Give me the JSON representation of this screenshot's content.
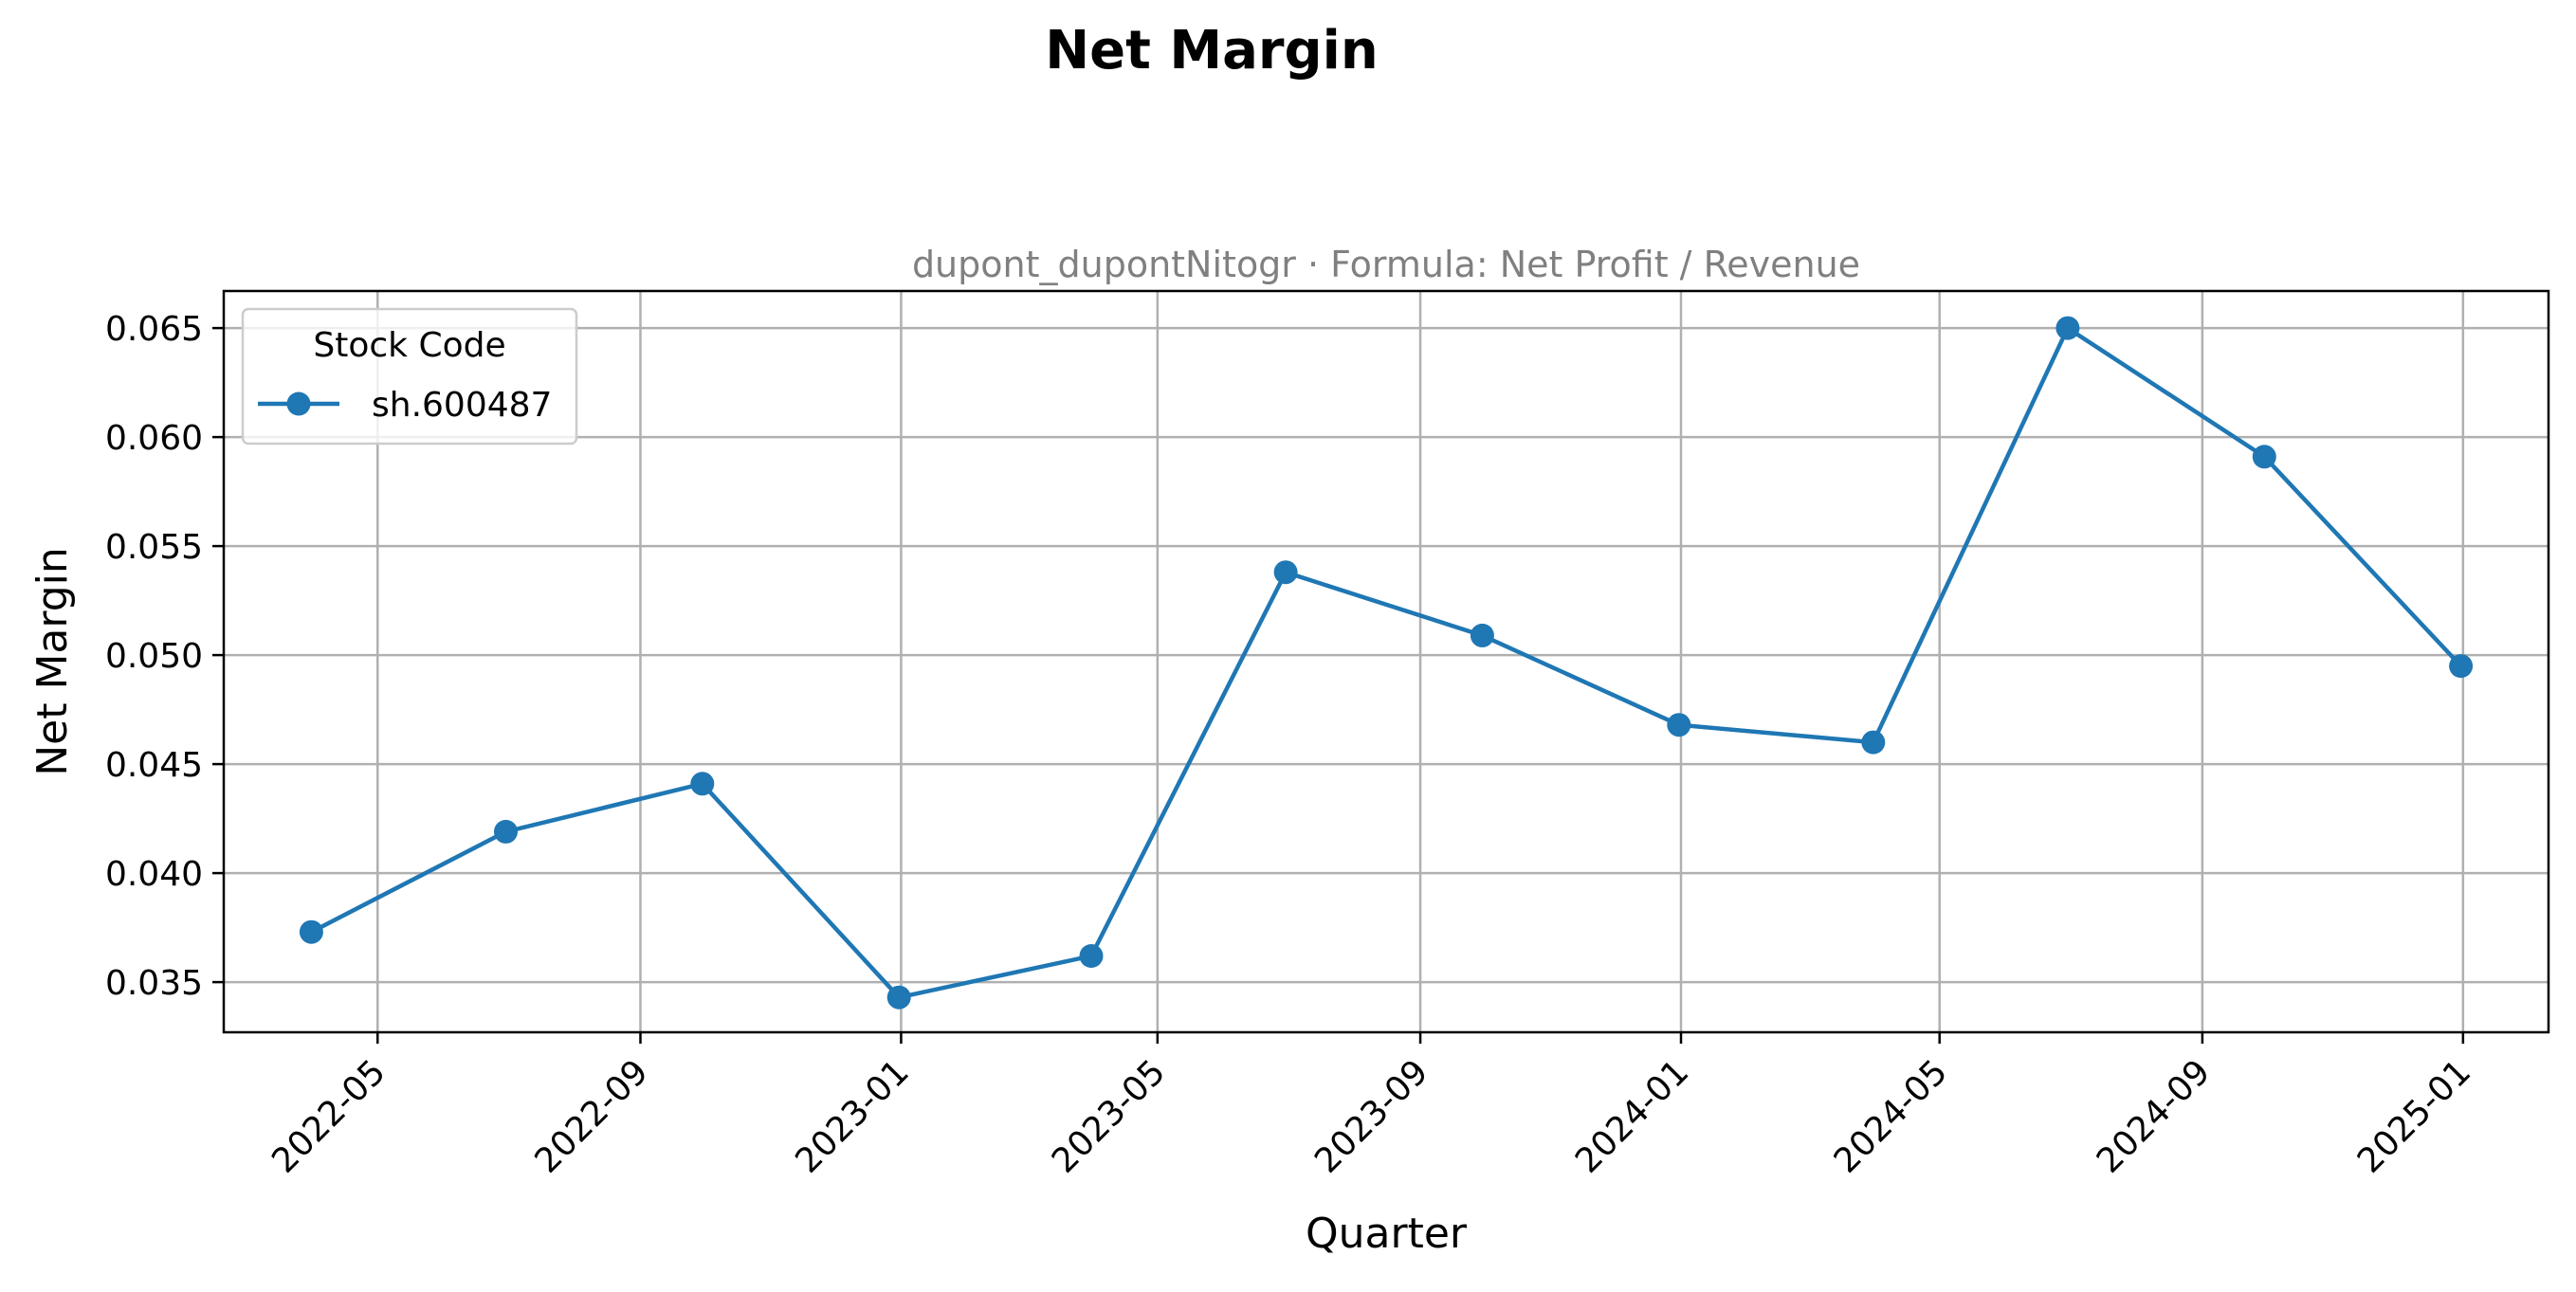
{
  "chart_data": {
    "type": "line",
    "title": "Net Margin",
    "subtitle": "dupont_dupontNitogr · Formula: Net Profit / Revenue",
    "xlabel": "Quarter",
    "ylabel": "Net Margin",
    "x": [
      "2022-03-31",
      "2022-06-30",
      "2022-09-30",
      "2022-12-31",
      "2023-03-31",
      "2023-06-30",
      "2023-09-30",
      "2023-12-31",
      "2024-03-31",
      "2024-06-30",
      "2024-09-30",
      "2024-12-31"
    ],
    "xticks": [
      "2022-05",
      "2022-09",
      "2023-01",
      "2023-05",
      "2023-09",
      "2024-01",
      "2024-05",
      "2024-09",
      "2025-01"
    ],
    "yticks": [
      "0.035",
      "0.040",
      "0.045",
      "0.050",
      "0.055",
      "0.060",
      "0.065"
    ],
    "xlim": [
      "2022-02-18",
      "2025-02-10"
    ],
    "ylim": [
      0.0327,
      0.0667
    ],
    "grid": true,
    "legend": {
      "title": "Stock Code",
      "placement": "top-left"
    },
    "series": [
      {
        "name": "sh.600487",
        "color": "#1f77b4",
        "marker": "circle",
        "values": [
          0.0373,
          0.0419,
          0.0441,
          0.0343,
          0.0362,
          0.0538,
          0.0509,
          0.0468,
          0.046,
          0.065,
          0.0591,
          0.0495
        ]
      }
    ]
  }
}
